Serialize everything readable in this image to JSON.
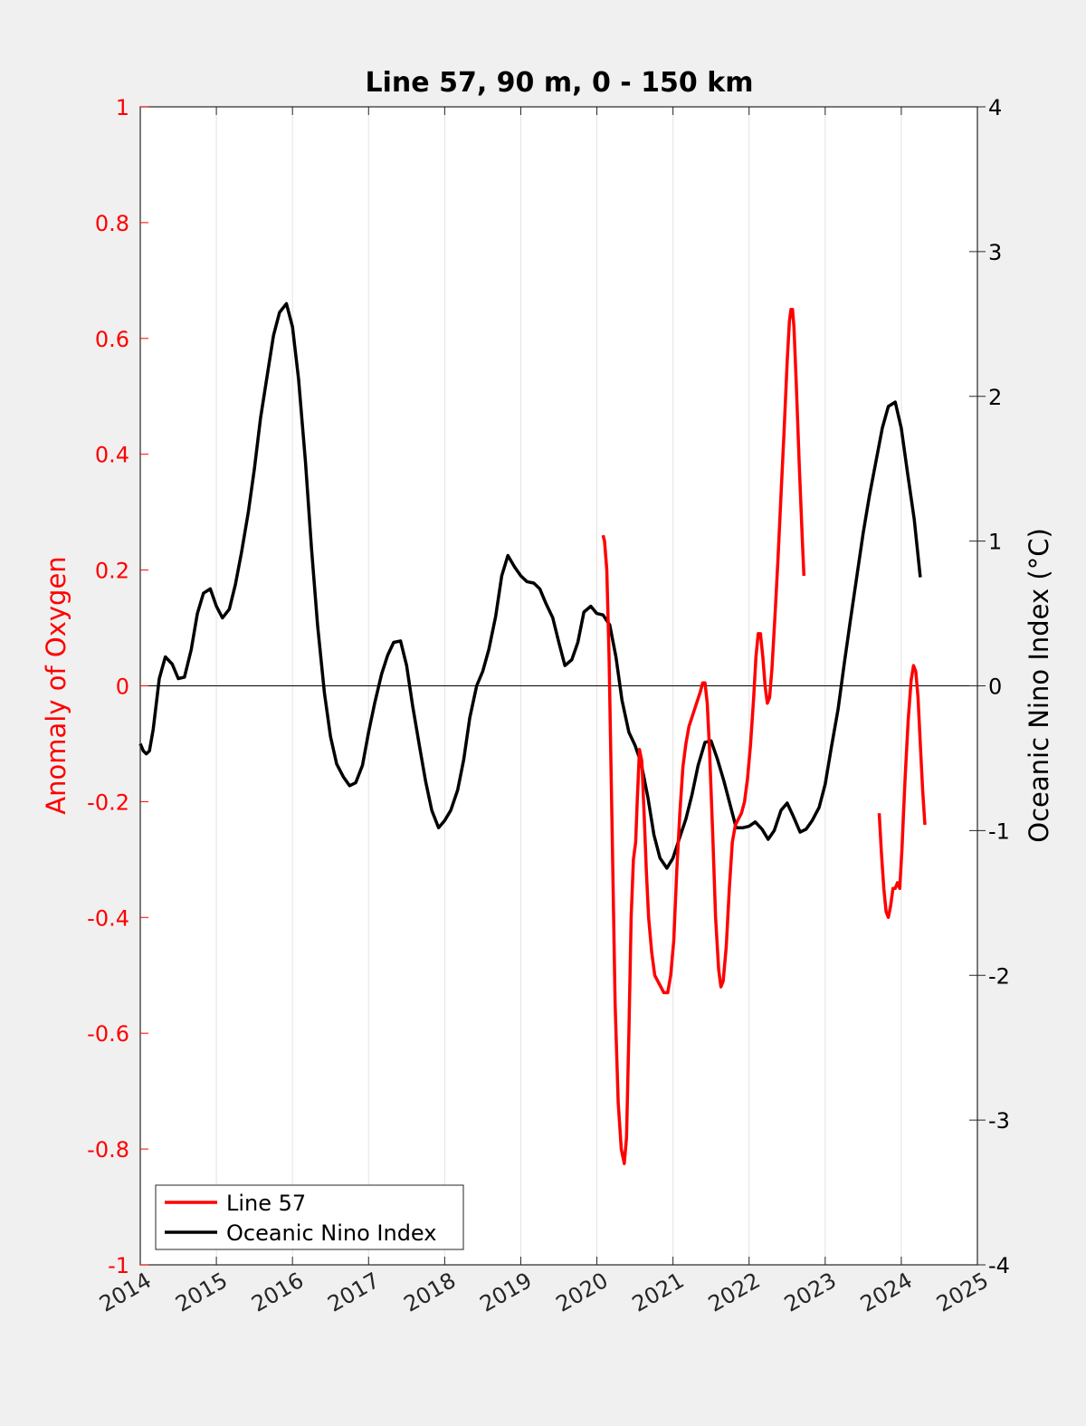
{
  "chart_data": {
    "type": "line",
    "title": "Line 57, 90 m, 0 - 150 km",
    "xlabel": "",
    "ylabel_left": "Anomaly of Oxygen",
    "ylabel_right": "Oceanic Nino Index (°C)",
    "xlim": [
      2014,
      2025
    ],
    "ylim_left": [
      -1,
      1
    ],
    "ylim_right": [
      -4,
      4
    ],
    "x_ticks": [
      "2014",
      "2015",
      "2016",
      "2017",
      "2018",
      "2019",
      "2020",
      "2021",
      "2022",
      "2023",
      "2024",
      "2025"
    ],
    "y_left_ticks": [
      "1",
      "0.8",
      "0.6",
      "0.4",
      "0.2",
      "0",
      "-0.2",
      "-0.4",
      "-0.6",
      "-0.8",
      "-1"
    ],
    "y_right_ticks": [
      "4",
      "3",
      "2",
      "1",
      "0",
      "-1",
      "-2",
      "-3",
      "-4"
    ],
    "grid": "vertical",
    "zero_line": true,
    "legend_position": "bottom-left",
    "colors": {
      "line57": "#ff0000",
      "oni": "#000000",
      "left_axis": "#ff0000",
      "right_axis": "#000000"
    },
    "series": [
      {
        "name": "Line 57",
        "axis": "left",
        "segments": [
          [
            [
              2020.08,
              0.26
            ],
            [
              2020.1,
              0.25
            ],
            [
              2020.13,
              0.2
            ],
            [
              2020.16,
              0.05
            ],
            [
              2020.2,
              -0.25
            ],
            [
              2020.24,
              -0.55
            ],
            [
              2020.28,
              -0.72
            ],
            [
              2020.32,
              -0.8
            ],
            [
              2020.36,
              -0.825
            ],
            [
              2020.39,
              -0.78
            ],
            [
              2020.42,
              -0.6
            ],
            [
              2020.45,
              -0.4
            ],
            [
              2020.48,
              -0.3
            ],
            [
              2020.51,
              -0.27
            ],
            [
              2020.53,
              -0.2
            ],
            [
              2020.56,
              -0.11
            ],
            [
              2020.59,
              -0.13
            ],
            [
              2020.62,
              -0.22
            ],
            [
              2020.65,
              -0.32
            ],
            [
              2020.68,
              -0.4
            ],
            [
              2020.72,
              -0.46
            ],
            [
              2020.76,
              -0.5
            ],
            [
              2020.8,
              -0.51
            ],
            [
              2020.84,
              -0.52
            ],
            [
              2020.88,
              -0.53
            ],
            [
              2020.93,
              -0.53
            ],
            [
              2020.97,
              -0.5
            ],
            [
              2021.01,
              -0.44
            ],
            [
              2021.05,
              -0.32
            ],
            [
              2021.09,
              -0.22
            ],
            [
              2021.13,
              -0.14
            ],
            [
              2021.17,
              -0.1
            ],
            [
              2021.21,
              -0.07
            ],
            [
              2021.26,
              -0.05
            ],
            [
              2021.31,
              -0.03
            ],
            [
              2021.36,
              -0.01
            ],
            [
              2021.39,
              0.005
            ],
            [
              2021.42,
              0.005
            ],
            [
              2021.45,
              -0.03
            ],
            [
              2021.48,
              -0.11
            ],
            [
              2021.52,
              -0.25
            ],
            [
              2021.56,
              -0.4
            ],
            [
              2021.6,
              -0.49
            ],
            [
              2021.63,
              -0.52
            ],
            [
              2021.66,
              -0.51
            ],
            [
              2021.7,
              -0.45
            ],
            [
              2021.74,
              -0.35
            ],
            [
              2021.78,
              -0.27
            ],
            [
              2021.82,
              -0.24
            ],
            [
              2021.86,
              -0.23
            ],
            [
              2021.9,
              -0.22
            ],
            [
              2021.94,
              -0.2
            ],
            [
              2021.98,
              -0.16
            ],
            [
              2022.02,
              -0.1
            ],
            [
              2022.06,
              -0.02
            ],
            [
              2022.09,
              0.05
            ],
            [
              2022.12,
              0.09
            ],
            [
              2022.15,
              0.09
            ],
            [
              2022.18,
              0.05
            ],
            [
              2022.21,
              0.0
            ],
            [
              2022.24,
              -0.03
            ],
            [
              2022.27,
              -0.02
            ],
            [
              2022.3,
              0.03
            ],
            [
              2022.34,
              0.12
            ],
            [
              2022.38,
              0.22
            ],
            [
              2022.42,
              0.33
            ],
            [
              2022.46,
              0.44
            ],
            [
              2022.5,
              0.56
            ],
            [
              2022.53,
              0.63
            ],
            [
              2022.55,
              0.65
            ],
            [
              2022.57,
              0.65
            ],
            [
              2022.59,
              0.62
            ],
            [
              2022.62,
              0.52
            ],
            [
              2022.66,
              0.38
            ],
            [
              2022.7,
              0.25
            ],
            [
              2022.72,
              0.19
            ]
          ],
          [
            [
              2023.71,
              -0.22
            ],
            [
              2023.74,
              -0.29
            ],
            [
              2023.77,
              -0.35
            ],
            [
              2023.8,
              -0.39
            ],
            [
              2023.83,
              -0.4
            ],
            [
              2023.86,
              -0.38
            ],
            [
              2023.89,
              -0.35
            ],
            [
              2023.92,
              -0.35
            ],
            [
              2023.95,
              -0.34
            ],
            [
              2023.98,
              -0.35
            ],
            [
              2024.01,
              -0.28
            ],
            [
              2024.05,
              -0.16
            ],
            [
              2024.09,
              -0.06
            ],
            [
              2024.13,
              0.01
            ],
            [
              2024.16,
              0.035
            ],
            [
              2024.19,
              0.025
            ],
            [
              2024.22,
              -0.02
            ],
            [
              2024.25,
              -0.1
            ],
            [
              2024.28,
              -0.18
            ],
            [
              2024.31,
              -0.24
            ]
          ]
        ]
      },
      {
        "name": "Oceanic Nino Index",
        "axis": "right",
        "points": [
          [
            2014.0,
            -0.4
          ],
          [
            2014.04,
            -0.45
          ],
          [
            2014.08,
            -0.47
          ],
          [
            2014.12,
            -0.45
          ],
          [
            2014.17,
            -0.3
          ],
          [
            2014.25,
            0.05
          ],
          [
            2014.33,
            0.2
          ],
          [
            2014.42,
            0.15
          ],
          [
            2014.5,
            0.05
          ],
          [
            2014.58,
            0.06
          ],
          [
            2014.67,
            0.25
          ],
          [
            2014.75,
            0.5
          ],
          [
            2014.83,
            0.64
          ],
          [
            2014.92,
            0.67
          ],
          [
            2015.0,
            0.55
          ],
          [
            2015.08,
            0.47
          ],
          [
            2015.17,
            0.53
          ],
          [
            2015.25,
            0.7
          ],
          [
            2015.33,
            0.92
          ],
          [
            2015.42,
            1.2
          ],
          [
            2015.5,
            1.5
          ],
          [
            2015.58,
            1.85
          ],
          [
            2015.67,
            2.15
          ],
          [
            2015.75,
            2.42
          ],
          [
            2015.83,
            2.58
          ],
          [
            2015.92,
            2.64
          ],
          [
            2016.0,
            2.48
          ],
          [
            2016.08,
            2.12
          ],
          [
            2016.17,
            1.55
          ],
          [
            2016.25,
            0.95
          ],
          [
            2016.33,
            0.42
          ],
          [
            2016.42,
            -0.05
          ],
          [
            2016.5,
            -0.35
          ],
          [
            2016.58,
            -0.54
          ],
          [
            2016.67,
            -0.63
          ],
          [
            2016.75,
            -0.69
          ],
          [
            2016.83,
            -0.67
          ],
          [
            2016.92,
            -0.55
          ],
          [
            2017.0,
            -0.32
          ],
          [
            2017.08,
            -0.12
          ],
          [
            2017.17,
            0.08
          ],
          [
            2017.25,
            0.21
          ],
          [
            2017.33,
            0.3
          ],
          [
            2017.42,
            0.31
          ],
          [
            2017.5,
            0.14
          ],
          [
            2017.58,
            -0.14
          ],
          [
            2017.67,
            -0.42
          ],
          [
            2017.75,
            -0.66
          ],
          [
            2017.83,
            -0.86
          ],
          [
            2017.92,
            -0.98
          ],
          [
            2018.0,
            -0.93
          ],
          [
            2018.08,
            -0.86
          ],
          [
            2018.17,
            -0.72
          ],
          [
            2018.25,
            -0.51
          ],
          [
            2018.33,
            -0.22
          ],
          [
            2018.42,
            0.0
          ],
          [
            2018.5,
            0.1
          ],
          [
            2018.58,
            0.25
          ],
          [
            2018.67,
            0.48
          ],
          [
            2018.75,
            0.76
          ],
          [
            2018.83,
            0.9
          ],
          [
            2018.92,
            0.82
          ],
          [
            2019.0,
            0.76
          ],
          [
            2019.08,
            0.72
          ],
          [
            2019.17,
            0.71
          ],
          [
            2019.25,
            0.67
          ],
          [
            2019.33,
            0.57
          ],
          [
            2019.42,
            0.47
          ],
          [
            2019.5,
            0.3
          ],
          [
            2019.58,
            0.14
          ],
          [
            2019.67,
            0.18
          ],
          [
            2019.75,
            0.3
          ],
          [
            2019.83,
            0.51
          ],
          [
            2019.92,
            0.55
          ],
          [
            2020.0,
            0.5
          ],
          [
            2020.08,
            0.49
          ],
          [
            2020.17,
            0.42
          ],
          [
            2020.25,
            0.2
          ],
          [
            2020.33,
            -0.1
          ],
          [
            2020.42,
            -0.32
          ],
          [
            2020.5,
            -0.41
          ],
          [
            2020.58,
            -0.53
          ],
          [
            2020.67,
            -0.77
          ],
          [
            2020.75,
            -1.03
          ],
          [
            2020.83,
            -1.19
          ],
          [
            2020.92,
            -1.26
          ],
          [
            2021.0,
            -1.19
          ],
          [
            2021.08,
            -1.06
          ],
          [
            2021.17,
            -0.92
          ],
          [
            2021.25,
            -0.75
          ],
          [
            2021.33,
            -0.55
          ],
          [
            2021.42,
            -0.39
          ],
          [
            2021.5,
            -0.38
          ],
          [
            2021.58,
            -0.5
          ],
          [
            2021.67,
            -0.66
          ],
          [
            2021.75,
            -0.82
          ],
          [
            2021.83,
            -0.98
          ],
          [
            2021.92,
            -0.98
          ],
          [
            2022.0,
            -0.97
          ],
          [
            2022.08,
            -0.94
          ],
          [
            2022.17,
            -0.99
          ],
          [
            2022.25,
            -1.06
          ],
          [
            2022.33,
            -1.0
          ],
          [
            2022.42,
            -0.86
          ],
          [
            2022.5,
            -0.81
          ],
          [
            2022.58,
            -0.9
          ],
          [
            2022.67,
            -1.01
          ],
          [
            2022.75,
            -0.99
          ],
          [
            2022.83,
            -0.93
          ],
          [
            2022.92,
            -0.84
          ],
          [
            2023.0,
            -0.68
          ],
          [
            2023.08,
            -0.43
          ],
          [
            2023.17,
            -0.16
          ],
          [
            2023.25,
            0.15
          ],
          [
            2023.33,
            0.45
          ],
          [
            2023.42,
            0.77
          ],
          [
            2023.5,
            1.06
          ],
          [
            2023.58,
            1.31
          ],
          [
            2023.67,
            1.56
          ],
          [
            2023.75,
            1.78
          ],
          [
            2023.83,
            1.93
          ],
          [
            2023.92,
            1.96
          ],
          [
            2024.0,
            1.78
          ],
          [
            2024.08,
            1.48
          ],
          [
            2024.17,
            1.15
          ],
          [
            2024.25,
            0.75
          ]
        ]
      }
    ]
  }
}
